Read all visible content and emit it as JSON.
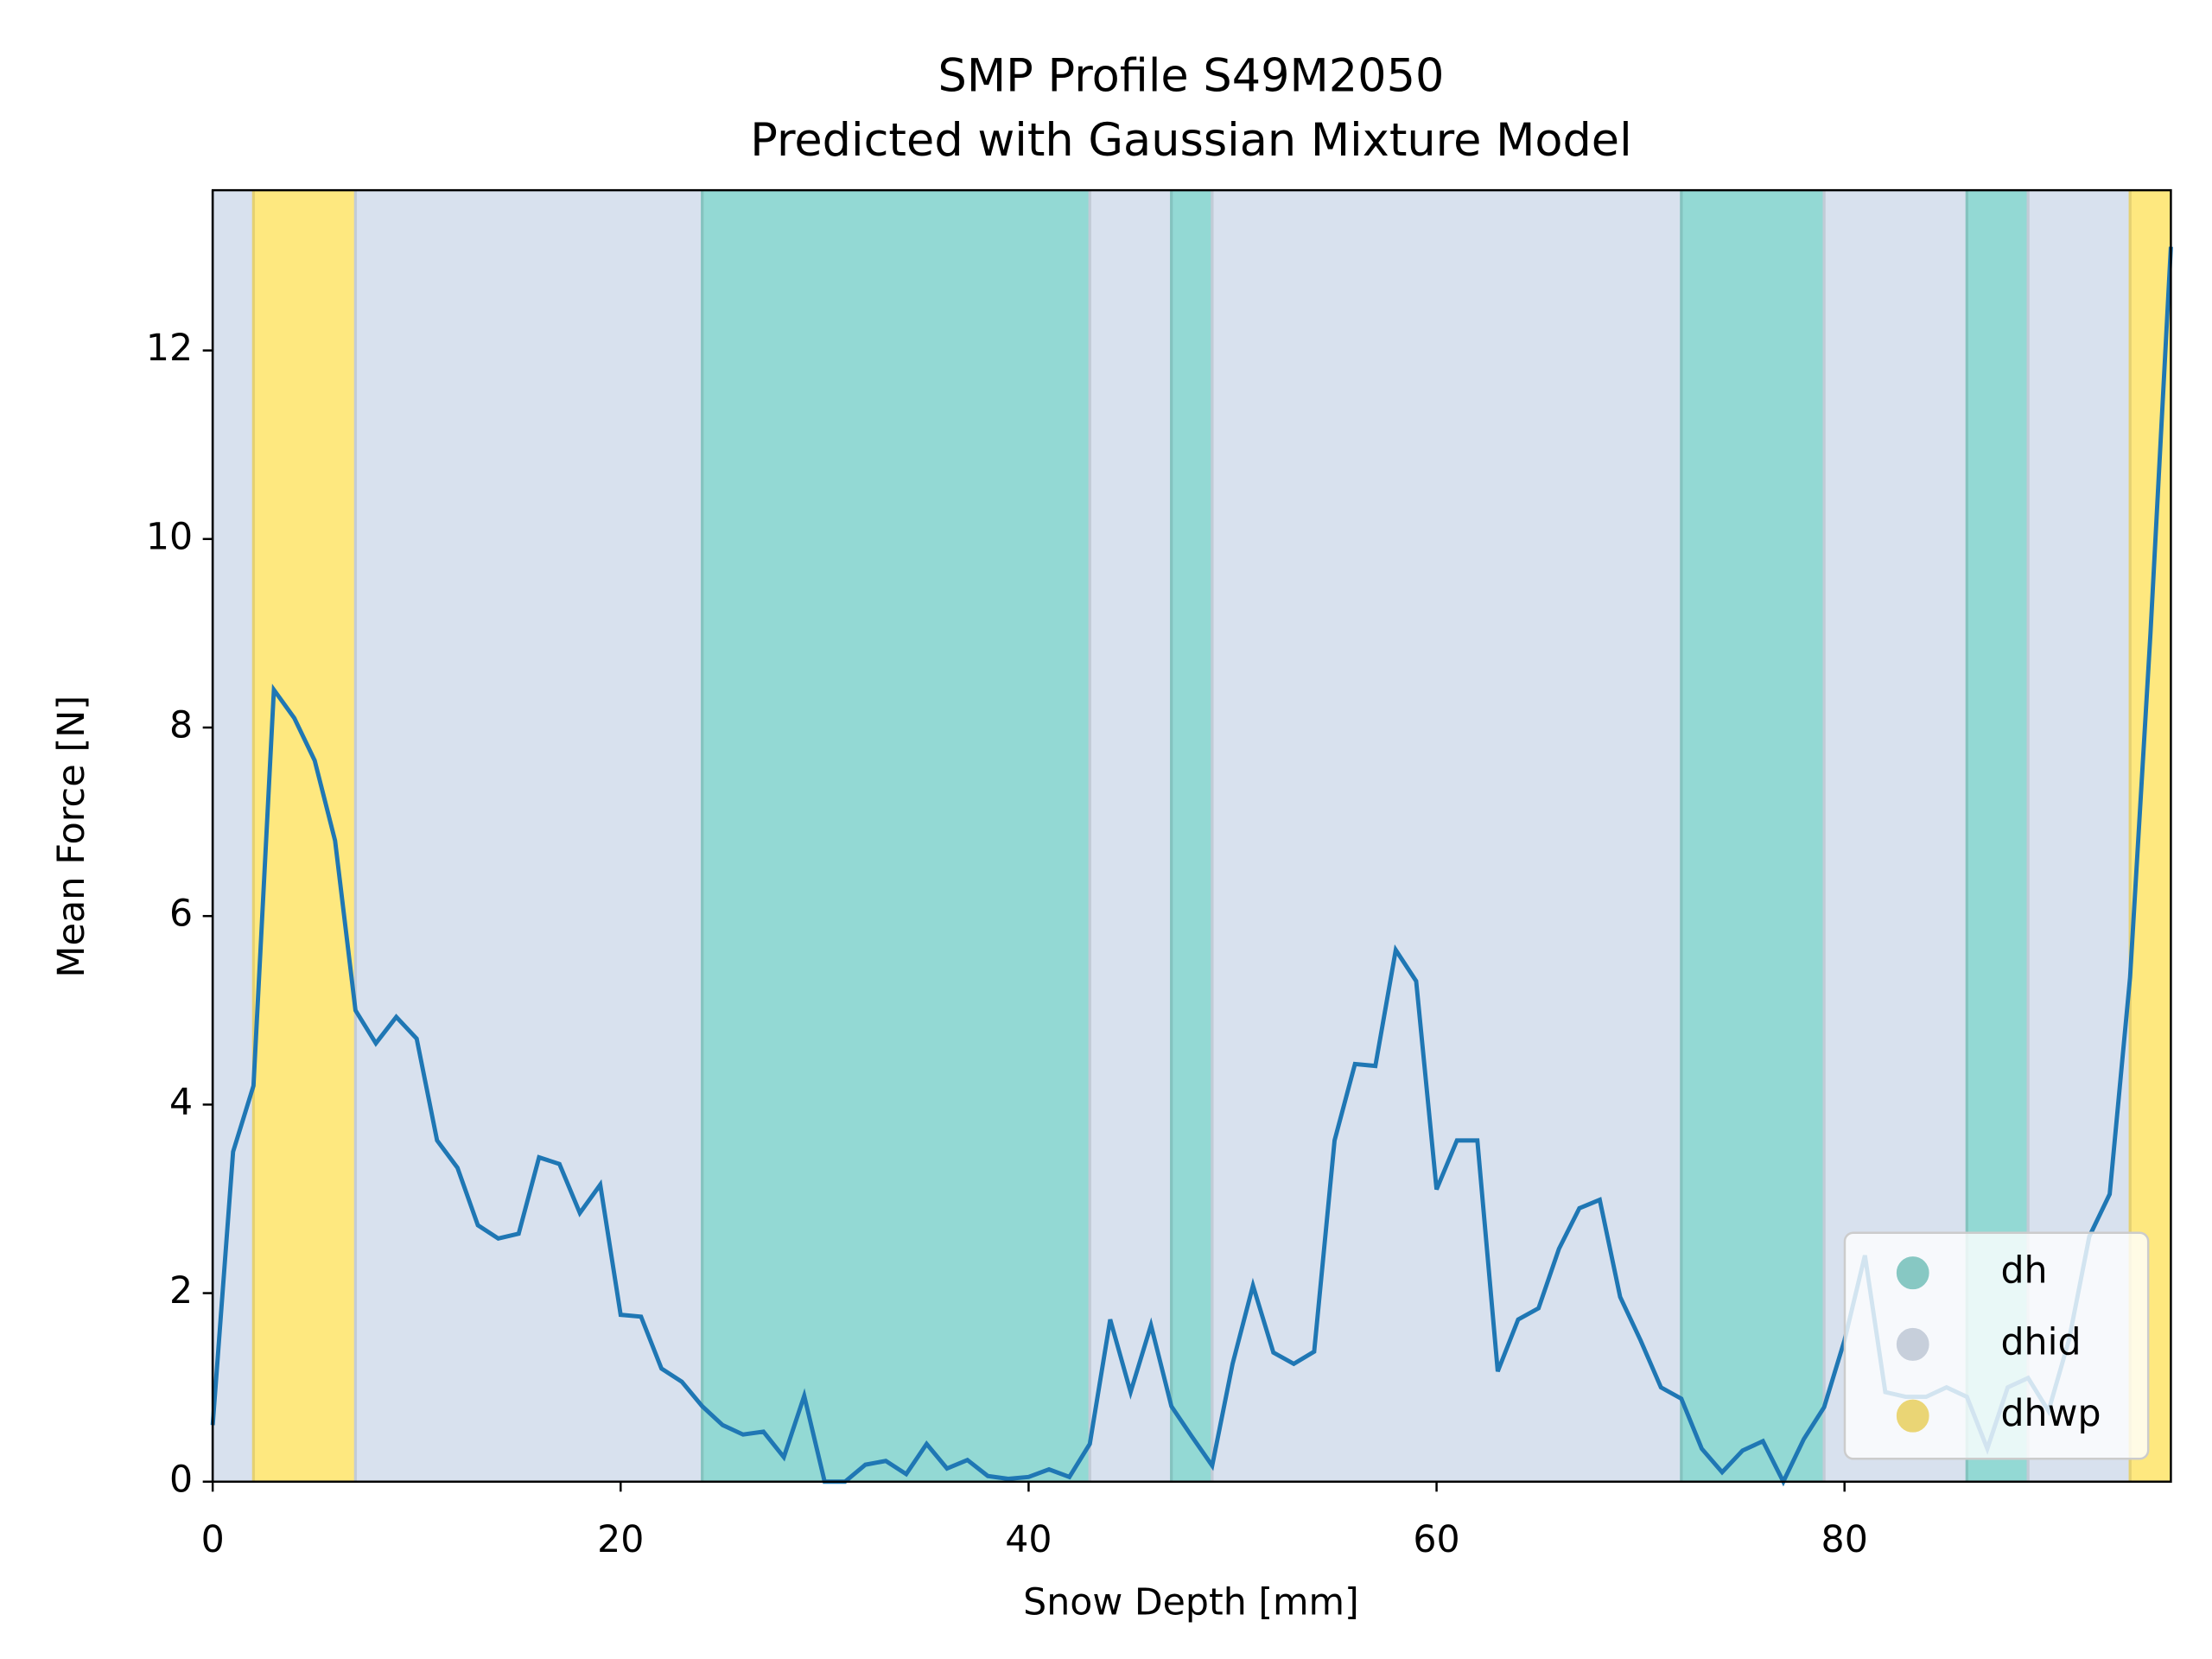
{
  "chart_data": {
    "type": "line",
    "title": "SMP Profile S49M2050",
    "subtitle": "Predicted with Gaussian Mixture Model",
    "x_label": "Snow Depth [mm]",
    "y_label": "Mean Force [N]",
    "xlim": [
      0,
      96
    ],
    "xticks": [
      0,
      20,
      40,
      60,
      80
    ],
    "ylim": [
      0,
      13.7
    ],
    "yticks": [
      0,
      2,
      4,
      6,
      8,
      10,
      12
    ],
    "legend_position": "lower right",
    "classes": [
      {
        "name": "dh",
        "color": "#93d9d4"
      },
      {
        "name": "dhid",
        "color": "#d8e1ee"
      },
      {
        "name": "dhwp",
        "color": "#fee87f"
      }
    ],
    "segments": [
      {
        "class": "dhid",
        "start": 0,
        "end": 2
      },
      {
        "class": "dhwp",
        "start": 2,
        "end": 7
      },
      {
        "class": "dhid",
        "start": 7,
        "end": 24
      },
      {
        "class": "dh",
        "start": 24,
        "end": 43
      },
      {
        "class": "dhid",
        "start": 43,
        "end": 47
      },
      {
        "class": "dh",
        "start": 47,
        "end": 49
      },
      {
        "class": "dhid",
        "start": 49,
        "end": 72
      },
      {
        "class": "dh",
        "start": 72,
        "end": 79
      },
      {
        "class": "dhid",
        "start": 79,
        "end": 86
      },
      {
        "class": "dh",
        "start": 86,
        "end": 89
      },
      {
        "class": "dhid",
        "start": 89,
        "end": 94
      },
      {
        "class": "dhwp",
        "start": 94,
        "end": 96
      }
    ],
    "x": [
      0,
      1,
      2,
      3,
      4,
      5,
      6,
      7,
      8,
      9,
      10,
      11,
      12,
      13,
      14,
      15,
      16,
      17,
      18,
      19,
      20,
      21,
      22,
      23,
      24,
      25,
      26,
      27,
      28,
      29,
      30,
      31,
      32,
      33,
      34,
      35,
      36,
      37,
      38,
      39,
      40,
      41,
      42,
      43,
      44,
      45,
      46,
      47,
      48,
      49,
      50,
      51,
      52,
      53,
      54,
      55,
      56,
      57,
      58,
      59,
      60,
      61,
      62,
      63,
      64,
      65,
      66,
      67,
      68,
      69,
      70,
      71,
      72,
      73,
      74,
      75,
      76,
      77,
      78,
      79,
      80,
      81,
      82,
      83,
      84,
      85,
      86,
      87,
      88,
      89,
      90,
      91,
      92,
      93,
      94,
      95,
      96
    ],
    "series": [
      {
        "color": "#1f77b4",
        "values": [
          0.6,
          3.5,
          4.2,
          8.4,
          8.1,
          7.65,
          6.8,
          5.0,
          4.65,
          4.93,
          4.7,
          3.62,
          3.33,
          2.72,
          2.58,
          2.63,
          3.44,
          3.37,
          2.85,
          3.15,
          1.77,
          1.75,
          1.2,
          1.06,
          0.8,
          0.6,
          0.5,
          0.53,
          0.26,
          0.91,
          0.0,
          0.0,
          0.18,
          0.22,
          0.08,
          0.4,
          0.14,
          0.23,
          0.06,
          0.03,
          0.05,
          0.13,
          0.05,
          0.4,
          1.72,
          0.95,
          1.66,
          0.8,
          0.48,
          0.17,
          1.25,
          2.08,
          1.37,
          1.25,
          1.38,
          3.62,
          4.43,
          4.41,
          5.64,
          5.31,
          3.1,
          3.62,
          3.62,
          1.17,
          1.72,
          1.84,
          2.47,
          2.9,
          2.99,
          1.96,
          1.5,
          1.0,
          0.88,
          0.35,
          0.1,
          0.33,
          0.43,
          0.0,
          0.45,
          0.79,
          1.5,
          2.4,
          0.95,
          0.9,
          0.9,
          1.0,
          0.9,
          0.35,
          1.0,
          1.1,
          0.75,
          1.5,
          2.6,
          3.05,
          5.35,
          9.0,
          13.1
        ]
      }
    ]
  }
}
